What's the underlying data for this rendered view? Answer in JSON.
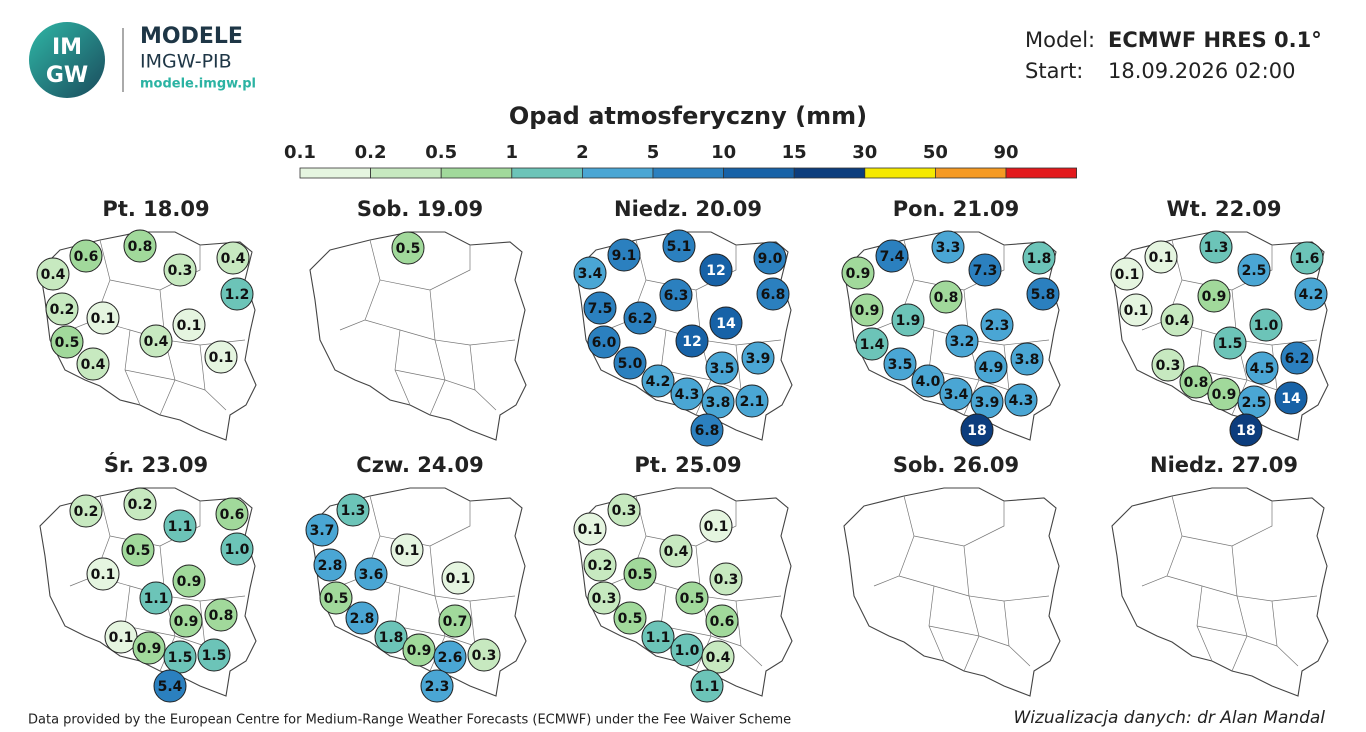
{
  "header": {
    "logo": {
      "top": "IM",
      "bottom": "GW"
    },
    "brand": "MODELE",
    "org": "IMGW-PIB",
    "url": "modele.imgw.pl",
    "model_label": "Model:",
    "model": "ECMWF HRES 0.1°",
    "start_label": "Start:",
    "start": "18.09.2026 02:00"
  },
  "title": "Opad atmosferyczny (mm)",
  "legend": {
    "ticks": [
      0.1,
      0.2,
      0.5,
      1,
      2,
      5,
      10,
      15,
      30,
      50,
      90
    ],
    "colors": [
      "#e5f5e0",
      "#c7e9c0",
      "#a1d99b",
      "#6cc4b8",
      "#4aa6d4",
      "#2b80bf",
      "#1762a7",
      "#0c3d7d",
      "#f5e900",
      "#f59a23",
      "#e3191c"
    ]
  },
  "days": [
    {
      "label": "Pt. 18.09",
      "values": [
        0.6,
        0.8,
        0.3,
        0.4,
        0.4,
        1.2,
        0.2,
        0.1,
        0.1,
        0.5,
        0.4,
        0.4,
        0.1
      ],
      "value_labels": [
        "0.6",
        "0.8",
        "0.3",
        "0.4",
        "0.4",
        "1.2",
        "0.2",
        "0.1",
        "0.1",
        "0.5",
        "0.4",
        "0.4",
        "0.1"
      ]
    },
    {
      "label": "Sob. 19.09",
      "values": [
        0.5
      ],
      "value_labels": [
        "0.5"
      ]
    },
    {
      "label": "Niedz. 20.09",
      "values": [
        9.1,
        5.1,
        12,
        9,
        3.4,
        6.8,
        6.3,
        7.5,
        6.2,
        14,
        12,
        6,
        5,
        3.5,
        3.9,
        4.2,
        4.3,
        3.8,
        2.1,
        6.8
      ],
      "value_labels": [
        "9.1",
        "5.1",
        "12",
        "9.0",
        "3.4",
        "6.8",
        "6.3",
        "7.5",
        "6.2",
        "14",
        "12",
        "6.0",
        "5.0",
        "3.5",
        "3.9",
        "4.2",
        "4.3",
        "3.8",
        "2.1",
        "6.8"
      ]
    },
    {
      "label": "Pon. 21.09",
      "values": [
        7.4,
        3.3,
        1.8,
        7.3,
        0.9,
        5.8,
        0.8,
        2.3,
        0.9,
        1.9,
        3.2,
        1.4,
        4.9,
        3.8,
        3.5,
        4,
        3.4,
        3.9,
        4.3,
        18
      ],
      "value_labels": [
        "7.4",
        "3.3",
        "1.8",
        "7.3",
        "0.9",
        "5.8",
        "0.8",
        "2.3",
        "0.9",
        "1.9",
        "3.2",
        "1.4",
        "4.9",
        "3.8",
        "3.5",
        "4.0",
        "3.4",
        "3.9",
        "4.3",
        "18"
      ]
    },
    {
      "label": "Wt. 22.09",
      "values": [
        0.1,
        1.3,
        1.6,
        2.5,
        0.1,
        4.2,
        0.9,
        0.1,
        0.4,
        1,
        1.5,
        6.2,
        4.5,
        0.3,
        0.8,
        0.9,
        2.5,
        14,
        18
      ],
      "value_labels": [
        "0.1",
        "1.3",
        "1.6",
        "2.5",
        "0.1",
        "4.2",
        "0.9",
        "0.1",
        "0.4",
        "1.0",
        "1.5",
        "6.2",
        "4.5",
        "0.3",
        "0.8",
        "0.9",
        "2.5",
        "14",
        "18"
      ]
    },
    {
      "label": "Śr. 23.09",
      "values": [
        0.2,
        0.2,
        0.6,
        1.1,
        1,
        0.5,
        0.1,
        0.9,
        1.1,
        0.9,
        0.8,
        0.1,
        0.9,
        1.5,
        1.5,
        5.4
      ],
      "value_labels": [
        "0.2",
        "0.2",
        "0.6",
        "1.1",
        "1.0",
        "0.5",
        "0.1",
        "0.9",
        "1.1",
        "0.9",
        "0.8",
        "0.1",
        "0.9",
        "1.5",
        "1.5",
        "5.4"
      ]
    },
    {
      "label": "Czw. 24.09",
      "values": [
        1.3,
        3.7,
        0.1,
        2.8,
        3.6,
        0.1,
        0.5,
        2.8,
        1.8,
        0.7,
        0.9,
        2.6,
        0.3,
        2.3
      ],
      "value_labels": [
        "1.3",
        "3.7",
        "0.1",
        "2.8",
        "3.6",
        "0.1",
        "0.5",
        "2.8",
        "1.8",
        "0.7",
        "0.9",
        "2.6",
        "0.3",
        "2.3"
      ]
    },
    {
      "label": "Pt. 25.09",
      "values": [
        0.3,
        0.1,
        0.1,
        0.4,
        0.2,
        0.5,
        0.3,
        0.3,
        0.5,
        0.5,
        0.6,
        1.1,
        1,
        0.4,
        1.1
      ],
      "value_labels": [
        "0.3",
        "0.1",
        "0.1",
        "0.4",
        "0.2",
        "0.5",
        "0.3",
        "0.3",
        "0.5",
        "0.5",
        "0.6",
        "1.1",
        "1.0",
        "0.4",
        "1.1"
      ]
    },
    {
      "label": "Sob. 26.09"
    },
    {
      "label": "Niedz. 27.09"
    }
  ],
  "footer": {
    "source": "Data provided by the European Centre for Medium-Range Weather Forecasts (ECMWF) under the Fee Waiver Scheme",
    "credit": "Wizualizacja danych: dr Alan Mandal"
  }
}
